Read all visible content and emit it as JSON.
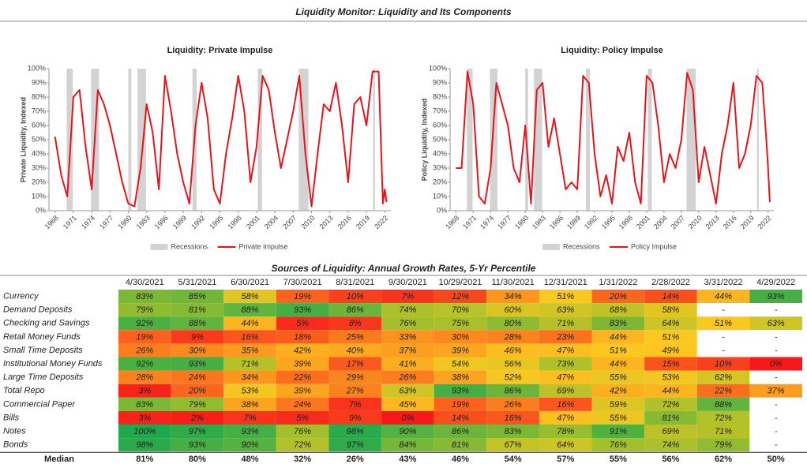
{
  "title": "Liquidity Monitor: Liquidity and Its Components",
  "chart_data": [
    {
      "type": "line",
      "title": "Liquidity: Private Impulse",
      "y_label": "Private Liquidity, Indexed",
      "x": [
        1968,
        1969,
        1970,
        1971,
        1972,
        1973,
        1974,
        1975,
        1976,
        1977,
        1978,
        1979,
        1980,
        1981,
        1982,
        1983,
        1984,
        1985,
        1986,
        1987,
        1988,
        1989,
        1990,
        1991,
        1992,
        1993,
        1994,
        1995,
        1996,
        1997,
        1998,
        1999,
        2000,
        2001,
        2002,
        2003,
        2004,
        2005,
        2006,
        2007,
        2008,
        2009,
        2010,
        2011,
        2012,
        2013,
        2014,
        2015,
        2016,
        2017,
        2018,
        2019,
        2020,
        2021,
        2021.7,
        2022,
        2022.3
      ],
      "series": [
        {
          "name": "Private Impulse",
          "color": "#e8141b",
          "values": [
            52,
            25,
            10,
            80,
            85,
            45,
            15,
            85,
            75,
            60,
            40,
            20,
            5,
            3,
            30,
            75,
            55,
            15,
            95,
            70,
            40,
            20,
            5,
            60,
            90,
            65,
            15,
            5,
            40,
            65,
            95,
            70,
            20,
            45,
            95,
            85,
            55,
            30,
            50,
            70,
            95,
            40,
            3,
            40,
            75,
            70,
            90,
            60,
            20,
            75,
            80,
            60,
            98,
            98,
            5,
            15,
            6
          ]
        }
      ],
      "recessions": {
        "name": "Recessions",
        "color": "#d3d3d3",
        "periods": [
          [
            1969.9,
            1970.9
          ],
          [
            1973.9,
            1975.2
          ],
          [
            1980.0,
            1980.5
          ],
          [
            1981.5,
            1982.9
          ],
          [
            1990.5,
            1991.2
          ],
          [
            2001.2,
            2001.9
          ],
          [
            2007.9,
            2009.5
          ],
          [
            2020.1,
            2020.4
          ]
        ]
      },
      "xlim": [
        1967,
        2023
      ],
      "xticks": [
        1968,
        1971,
        1974,
        1977,
        1980,
        1983,
        1986,
        1989,
        1992,
        1995,
        1998,
        2001,
        2004,
        2007,
        2010,
        2013,
        2016,
        2019,
        2022
      ],
      "ylim": [
        0,
        100
      ],
      "yticks": [
        {
          "value": 0,
          "label": "0%"
        },
        {
          "value": 10,
          "label": "10%"
        },
        {
          "value": 20,
          "label": "20%"
        },
        {
          "value": 30,
          "label": "30%"
        },
        {
          "value": 40,
          "label": "40%"
        },
        {
          "value": 50,
          "label": "50%"
        },
        {
          "value": 60,
          "label": "60%"
        },
        {
          "value": 70,
          "label": "70%"
        },
        {
          "value": 80,
          "label": "80%"
        },
        {
          "value": 90,
          "label": "90%"
        },
        {
          "value": 100,
          "label": "100%"
        }
      ]
    },
    {
      "type": "line",
      "title": "Liquidity: Policy Impulse",
      "y_label": "Policy Liquidity, Indexed",
      "x": [
        1968,
        1969,
        1970,
        1971,
        1972,
        1973,
        1974,
        1975,
        1976,
        1977,
        1978,
        1979,
        1980,
        1981,
        1982,
        1983,
        1984,
        1985,
        1986,
        1987,
        1988,
        1989,
        1990,
        1991,
        1992,
        1993,
        1994,
        1995,
        1996,
        1997,
        1998,
        1999,
        2000,
        2001,
        2002,
        2003,
        2004,
        2005,
        2006,
        2007,
        2008,
        2009,
        2010,
        2011,
        2012,
        2013,
        2014,
        2015,
        2016,
        2017,
        2018,
        2019,
        2020,
        2021,
        2021.7,
        2022,
        2022.3
      ],
      "series": [
        {
          "name": "Policy Impulse",
          "color": "#e8141b",
          "values": [
            30,
            30,
            98,
            75,
            10,
            5,
            30,
            90,
            75,
            60,
            30,
            20,
            60,
            5,
            85,
            90,
            45,
            65,
            40,
            15,
            20,
            15,
            95,
            90,
            40,
            10,
            25,
            5,
            45,
            35,
            55,
            20,
            5,
            95,
            90,
            60,
            20,
            40,
            30,
            50,
            97,
            85,
            20,
            45,
            25,
            5,
            40,
            60,
            90,
            30,
            40,
            60,
            95,
            90,
            50,
            30,
            6
          ]
        }
      ],
      "recessions": {
        "name": "Recessions",
        "color": "#d3d3d3",
        "periods": [
          [
            1969.9,
            1970.9
          ],
          [
            1973.9,
            1975.2
          ],
          [
            1980.0,
            1980.5
          ],
          [
            1981.5,
            1982.9
          ],
          [
            1990.5,
            1991.2
          ],
          [
            2001.2,
            2001.9
          ],
          [
            2007.9,
            2009.5
          ],
          [
            2020.1,
            2020.4
          ]
        ]
      },
      "xlim": [
        1967,
        2023
      ],
      "xticks": [
        1968,
        1971,
        1974,
        1977,
        1980,
        1983,
        1986,
        1989,
        1992,
        1995,
        1998,
        2001,
        2004,
        2007,
        2010,
        2013,
        2016,
        2019,
        2022
      ],
      "ylim": [
        0,
        100
      ],
      "yticks": [
        {
          "value": 0,
          "label": "0%"
        },
        {
          "value": 10,
          "label": "10%"
        },
        {
          "value": 20,
          "label": "20%"
        },
        {
          "value": 30,
          "label": "30%"
        },
        {
          "value": 40,
          "label": "40%"
        },
        {
          "value": 50,
          "label": "50%"
        },
        {
          "value": 60,
          "label": "60%"
        },
        {
          "value": 70,
          "label": "70%"
        },
        {
          "value": 80,
          "label": "80%"
        },
        {
          "value": 90,
          "label": "90%"
        },
        {
          "value": 100,
          "label": "100%"
        }
      ]
    }
  ],
  "table": {
    "title": "Sources of Liquidity: Annual Growth Rates, 5-Yr Percentile",
    "columns": [
      "4/30/2021",
      "5/31/2021",
      "6/30/2021",
      "7/30/2021",
      "8/31/2021",
      "9/30/2021",
      "10/29/2021",
      "11/30/2021",
      "12/31/2021",
      "1/31/2022",
      "2/28/2022",
      "3/31/2022",
      "4/29/2022"
    ],
    "rows": [
      {
        "label": "Currency",
        "cells": [
          "83%",
          "85%",
          "58%",
          "19%",
          "10%",
          "7%",
          "12%",
          "34%",
          "51%",
          "20%",
          "14%",
          "44%",
          "93%"
        ]
      },
      {
        "label": "Demand Deposits",
        "cells": [
          "79%",
          "81%",
          "88%",
          "93%",
          "86%",
          "74%",
          "70%",
          "60%",
          "63%",
          "68%",
          "58%",
          "-",
          "-"
        ]
      },
      {
        "label": "Checking and Savings",
        "cells": [
          "92%",
          "88%",
          "44%",
          "5%",
          "8%",
          "76%",
          "75%",
          "80%",
          "71%",
          "83%",
          "64%",
          "51%",
          "63%"
        ]
      },
      {
        "label": "Retail Money Funds",
        "cells": [
          "19%",
          "9%",
          "16%",
          "18%",
          "25%",
          "33%",
          "30%",
          "28%",
          "23%",
          "44%",
          "51%",
          "-",
          "-"
        ]
      },
      {
        "label": "Small Time Deposits",
        "cells": [
          "26%",
          "30%",
          "35%",
          "42%",
          "40%",
          "37%",
          "39%",
          "46%",
          "47%",
          "51%",
          "49%",
          "-",
          "-"
        ]
      },
      {
        "label": "Institutional Money Funds",
        "cells": [
          "92%",
          "93%",
          "71%",
          "39%",
          "17%",
          "41%",
          "54%",
          "56%",
          "73%",
          "44%",
          "15%",
          "10%",
          "0%"
        ]
      },
      {
        "label": "Large Time Deposits",
        "cells": [
          "28%",
          "24%",
          "34%",
          "22%",
          "29%",
          "26%",
          "38%",
          "52%",
          "47%",
          "55%",
          "53%",
          "62%",
          "-"
        ]
      },
      {
        "label": "Total Repo",
        "cells": [
          "3%",
          "20%",
          "53%",
          "39%",
          "27%",
          "63%",
          "93%",
          "86%",
          "69%",
          "42%",
          "44%",
          "22%",
          "37%"
        ]
      },
      {
        "label": "Commercial Paper",
        "cells": [
          "83%",
          "79%",
          "38%",
          "24%",
          "7%",
          "45%",
          "19%",
          "26%",
          "16%",
          "59%",
          "72%",
          "88%",
          "-"
        ]
      },
      {
        "label": "Bills",
        "cells": [
          "3%",
          "2%",
          "7%",
          "5%",
          "9%",
          "0%",
          "14%",
          "16%",
          "47%",
          "55%",
          "81%",
          "72%",
          "-"
        ]
      },
      {
        "label": "Notes",
        "cells": [
          "100%",
          "97%",
          "93%",
          "76%",
          "98%",
          "90%",
          "86%",
          "83%",
          "78%",
          "91%",
          "69%",
          "71%",
          "-"
        ]
      },
      {
        "label": "Bonds",
        "cells": [
          "98%",
          "93%",
          "90%",
          "72%",
          "97%",
          "84%",
          "81%",
          "67%",
          "64%",
          "76%",
          "74%",
          "79%",
          "-"
        ]
      }
    ],
    "median": {
      "label": "Median",
      "cells": [
        "81%",
        "80%",
        "48%",
        "32%",
        "26%",
        "43%",
        "46%",
        "54%",
        "57%",
        "55%",
        "56%",
        "62%",
        "50%"
      ]
    }
  }
}
